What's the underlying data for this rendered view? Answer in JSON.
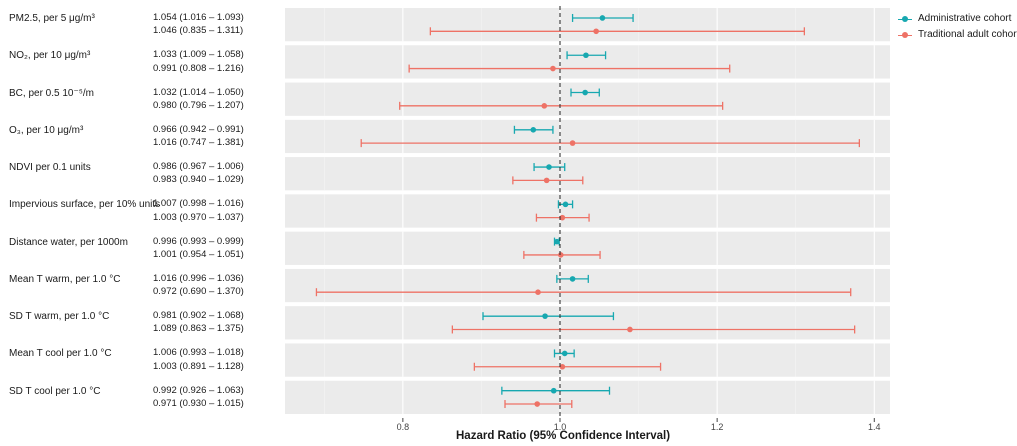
{
  "chart_data": {
    "type": "forest",
    "xlabel": "Hazard Ratio (95% Confidence Interval)",
    "xlim": [
      0.65,
      1.42
    ],
    "xticks": [
      0.8,
      1.0,
      1.2,
      1.4
    ],
    "xtick_labels": [
      "0.8",
      "1.0",
      "1.2",
      "1.4"
    ],
    "reference_line": 1.0,
    "legend": {
      "position": "top-right",
      "entries": [
        {
          "name": "Administrative cohort",
          "color": "#17A8B0"
        },
        {
          "name": "Traditional adult cohort",
          "color": "#EE7266"
        }
      ]
    },
    "rows": [
      {
        "label": "PM2.5, per 5 μg/m³",
        "estimates": [
          {
            "series": 0,
            "hr": 1.054,
            "lo": 1.016,
            "hi": 1.093,
            "text": "1.054 (1.016 – 1.093)"
          },
          {
            "series": 1,
            "hr": 1.046,
            "lo": 0.835,
            "hi": 1.311,
            "text": "1.046 (0.835 – 1.311)"
          }
        ]
      },
      {
        "label": "NO₂, per 10 μg/m³",
        "estimates": [
          {
            "series": 0,
            "hr": 1.033,
            "lo": 1.009,
            "hi": 1.058,
            "text": "1.033 (1.009 – 1.058)"
          },
          {
            "series": 1,
            "hr": 0.991,
            "lo": 0.808,
            "hi": 1.216,
            "text": "0.991 (0.808 – 1.216)"
          }
        ]
      },
      {
        "label": "BC,  per 0.5  10⁻⁵/m",
        "estimates": [
          {
            "series": 0,
            "hr": 1.032,
            "lo": 1.014,
            "hi": 1.05,
            "text": "1.032 (1.014 – 1.050)"
          },
          {
            "series": 1,
            "hr": 0.98,
            "lo": 0.796,
            "hi": 1.207,
            "text": "0.980 (0.796 – 1.207)"
          }
        ]
      },
      {
        "label": "O₃, per 10  μg/m³",
        "estimates": [
          {
            "series": 0,
            "hr": 0.966,
            "lo": 0.942,
            "hi": 0.991,
            "text": "0.966 (0.942 – 0.991)"
          },
          {
            "series": 1,
            "hr": 1.016,
            "lo": 0.747,
            "hi": 1.381,
            "text": "1.016 (0.747 – 1.381)"
          }
        ]
      },
      {
        "label": "NDVI per 0.1 units",
        "estimates": [
          {
            "series": 0,
            "hr": 0.986,
            "lo": 0.967,
            "hi": 1.006,
            "text": "0.986 (0.967 – 1.006)"
          },
          {
            "series": 1,
            "hr": 0.983,
            "lo": 0.94,
            "hi": 1.029,
            "text": "0.983 (0.940 – 1.029)"
          }
        ]
      },
      {
        "label": "Impervious surface, per 10% units",
        "estimates": [
          {
            "series": 0,
            "hr": 1.007,
            "lo": 0.998,
            "hi": 1.016,
            "text": "1.007 (0.998 – 1.016)"
          },
          {
            "series": 1,
            "hr": 1.003,
            "lo": 0.97,
            "hi": 1.037,
            "text": "1.003 (0.970 – 1.037)"
          }
        ]
      },
      {
        "label": "Distance water, per 1000m",
        "estimates": [
          {
            "series": 0,
            "hr": 0.996,
            "lo": 0.993,
            "hi": 0.999,
            "text": "0.996 (0.993 – 0.999)"
          },
          {
            "series": 1,
            "hr": 1.001,
            "lo": 0.954,
            "hi": 1.051,
            "text": "1.001 (0.954 – 1.051)"
          }
        ]
      },
      {
        "label": "Mean T warm, per 1.0 °C",
        "estimates": [
          {
            "series": 0,
            "hr": 1.016,
            "lo": 0.996,
            "hi": 1.036,
            "text": "1.016 (0.996 – 1.036)"
          },
          {
            "series": 1,
            "hr": 0.972,
            "lo": 0.69,
            "hi": 1.37,
            "text": "0.972 (0.690 – 1.370)"
          }
        ]
      },
      {
        "label": "SD T warm, per 1.0 °C",
        "estimates": [
          {
            "series": 0,
            "hr": 0.981,
            "lo": 0.902,
            "hi": 1.068,
            "text": "0.981 (0.902 – 1.068)"
          },
          {
            "series": 1,
            "hr": 1.089,
            "lo": 0.863,
            "hi": 1.375,
            "text": "1.089 (0.863 – 1.375)"
          }
        ]
      },
      {
        "label": "Mean T cool per 1.0 °C",
        "estimates": [
          {
            "series": 0,
            "hr": 1.006,
            "lo": 0.993,
            "hi": 1.018,
            "text": "1.006 (0.993 – 1.018)"
          },
          {
            "series": 1,
            "hr": 1.003,
            "lo": 0.891,
            "hi": 1.128,
            "text": "1.003 (0.891 – 1.128)"
          }
        ]
      },
      {
        "label": "SD T cool per 1.0 °C",
        "estimates": [
          {
            "series": 0,
            "hr": 0.992,
            "lo": 0.926,
            "hi": 1.063,
            "text": "0.992 (0.926 – 1.063)"
          },
          {
            "series": 1,
            "hr": 0.971,
            "lo": 0.93,
            "hi": 1.015,
            "text": "0.971 (0.930 – 1.015)"
          }
        ]
      }
    ]
  }
}
